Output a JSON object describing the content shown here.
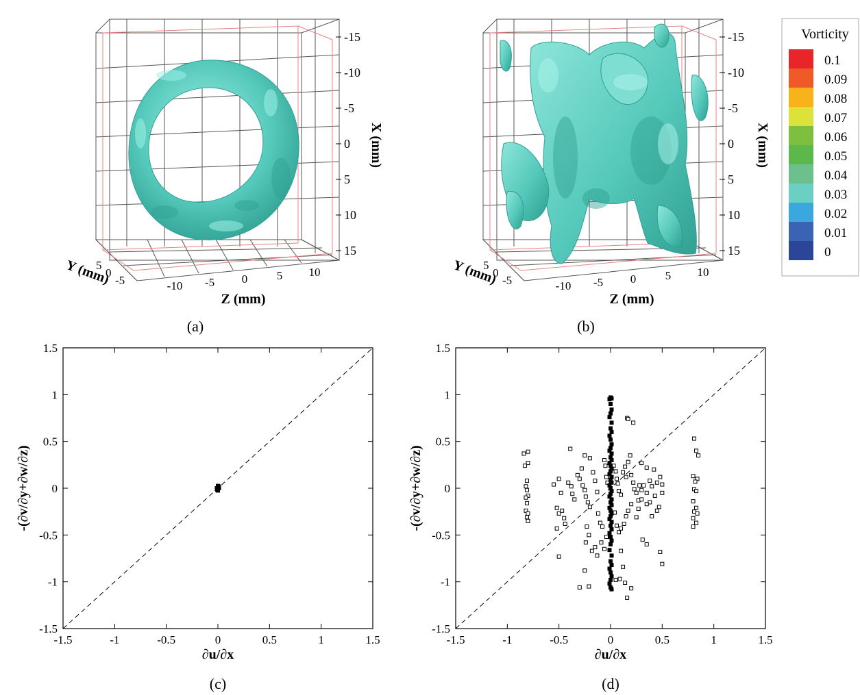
{
  "colors": {
    "isosurface": "#5fcfc1",
    "isosurface_dark": "#2f9f92",
    "isosurface_light": "#8ee6da",
    "box_grid": "#555555",
    "box_red": "#e88080",
    "axis": "#000000",
    "marker": "#000000"
  },
  "panel_a": {
    "label": "(a)",
    "x_axis": {
      "title": "X (mm)",
      "ticks": [
        "-15",
        "-10",
        "-5",
        "0",
        "5",
        "10",
        "15"
      ]
    },
    "y_axis": {
      "title": "Y (mm)",
      "ticks": [
        "5",
        "0",
        "-5"
      ]
    },
    "z_axis": {
      "title": "Z (mm)",
      "ticks": [
        "-10",
        "-5",
        "0",
        "5",
        "10"
      ]
    },
    "shape": "vortex-ring-isosurface"
  },
  "panel_b": {
    "label": "(b)",
    "x_axis": {
      "title": "X (mm)",
      "ticks": [
        "-15",
        "-10",
        "-5",
        "0",
        "5",
        "10",
        "15"
      ]
    },
    "y_axis": {
      "title": "Y (mm)",
      "ticks": [
        "5",
        "0",
        "-5"
      ]
    },
    "z_axis": {
      "title": "Z (mm)",
      "ticks": [
        "-10",
        "-5",
        "0",
        "5",
        "10"
      ]
    },
    "shape": "turbulent-vortex-isosurface"
  },
  "legend": {
    "title": "Vorticity",
    "entries": [
      {
        "label": "0.1",
        "color": "#e8262a"
      },
      {
        "label": "0.09",
        "color": "#f05a28"
      },
      {
        "label": "0.08",
        "color": "#f8b21a"
      },
      {
        "label": "0.07",
        "color": "#dde23a"
      },
      {
        "label": "0.06",
        "color": "#7fbf3f"
      },
      {
        "label": "0.05",
        "color": "#5cb84a"
      },
      {
        "label": "0.04",
        "color": "#6cc08c"
      },
      {
        "label": "0.03",
        "color": "#6ccfc4"
      },
      {
        "label": "0.02",
        "color": "#3aa8df"
      },
      {
        "label": "0.01",
        "color": "#3b63b3"
      },
      {
        "label": "0",
        "color": "#2b4598"
      }
    ]
  },
  "chart_data": [
    {
      "type": "scatter",
      "panel": "(c)",
      "xlabel": "∂u/∂x",
      "ylabel": "-(∂v/∂y+∂w/∂z)",
      "xlim": [
        -1.5,
        1.5
      ],
      "ylim": [
        -1.5,
        1.5
      ],
      "xticks": [
        "-1.5",
        "-1",
        "-0.5",
        "0",
        "0.5",
        "1",
        "1.5"
      ],
      "yticks": [
        "-1.5",
        "-1",
        "-0.5",
        "0",
        "0.5",
        "1",
        "1.5"
      ],
      "reference_line": "y = x (dashed)",
      "marker": "square",
      "series": [
        {
          "points": [
            [
              0,
              0
            ],
            [
              0,
              0.01
            ],
            [
              0,
              -0.01
            ],
            [
              0.01,
              0
            ],
            [
              -0.01,
              0
            ],
            [
              0.005,
              0.02
            ],
            [
              -0.005,
              -0.02
            ],
            [
              0.01,
              0.01
            ],
            [
              -0.01,
              -0.01
            ],
            [
              0,
              0.025
            ],
            [
              0,
              -0.025
            ]
          ]
        }
      ]
    },
    {
      "type": "scatter",
      "panel": "(d)",
      "xlabel": "∂u/∂x",
      "ylabel": "-(∂v/∂y+∂w/∂z)",
      "xlim": [
        -1.5,
        1.5
      ],
      "ylim": [
        -1.5,
        1.5
      ],
      "xticks": [
        "-1.5",
        "-1",
        "-0.5",
        "0",
        "0.5",
        "1",
        "1.5"
      ],
      "yticks": [
        "-1.5",
        "-1",
        "-0.5",
        "0",
        "0.5",
        "1",
        "1.5"
      ],
      "reference_line": "y = x (dashed)",
      "marker": "square",
      "series": [
        {
          "points": [
            [
              -0.84,
              0.37
            ],
            [
              -0.8,
              0.39
            ],
            [
              -0.8,
              0.27
            ],
            [
              -0.83,
              0.24
            ],
            [
              -0.81,
              0.08
            ],
            [
              -0.82,
              0.02
            ],
            [
              -0.81,
              -0.02
            ],
            [
              -0.8,
              -0.08
            ],
            [
              -0.82,
              -0.1
            ],
            [
              -0.81,
              -0.16
            ],
            [
              -0.82,
              -0.24
            ],
            [
              -0.8,
              -0.27
            ],
            [
              -0.81,
              -0.31
            ],
            [
              -0.8,
              -0.35
            ],
            [
              0.81,
              0.53
            ],
            [
              0.83,
              0.4
            ],
            [
              0.85,
              0.35
            ],
            [
              0.8,
              0.13
            ],
            [
              0.84,
              0.1
            ],
            [
              0.82,
              0.07
            ],
            [
              0.81,
              -0.01
            ],
            [
              0.83,
              -0.03
            ],
            [
              0.8,
              -0.14
            ],
            [
              0.83,
              -0.21
            ],
            [
              0.81,
              -0.25
            ],
            [
              0.84,
              -0.27
            ],
            [
              0.8,
              -0.32
            ],
            [
              0.83,
              -0.37
            ],
            [
              0.8,
              -0.41
            ],
            [
              -0.52,
              -0.21
            ],
            [
              -0.5,
              -0.27
            ],
            [
              -0.47,
              -0.24
            ],
            [
              -0.45,
              -0.32
            ],
            [
              -0.44,
              -0.38
            ],
            [
              -0.52,
              -0.43
            ],
            [
              -0.5,
              -0.73
            ],
            [
              -0.39,
              0.42
            ],
            [
              -0.41,
              0.06
            ],
            [
              -0.38,
              0.02
            ],
            [
              -0.37,
              -0.06
            ],
            [
              -0.35,
              -0.12
            ],
            [
              -0.32,
              0.14
            ],
            [
              -0.3,
              0.1
            ],
            [
              -0.28,
              0.21
            ],
            [
              -0.27,
              0.03
            ],
            [
              -0.25,
              -0.02
            ],
            [
              -0.24,
              -0.09
            ],
            [
              -0.22,
              -0.15
            ],
            [
              -0.2,
              -0.2
            ],
            [
              -0.17,
              0.17
            ],
            [
              -0.15,
              0.08
            ],
            [
              -0.13,
              -0.04
            ],
            [
              -0.12,
              -0.27
            ],
            [
              -0.1,
              -0.37
            ],
            [
              -0.08,
              -0.41
            ],
            [
              -0.06,
              0.3
            ],
            [
              -0.05,
              0.24
            ],
            [
              -0.04,
              0.12
            ],
            [
              -0.03,
              0.06
            ],
            [
              -0.23,
              -0.41
            ],
            [
              -0.21,
              -0.5
            ],
            [
              -0.24,
              -0.58
            ],
            [
              -0.18,
              -0.67
            ],
            [
              -0.15,
              -0.63
            ],
            [
              -0.13,
              -0.72
            ],
            [
              -0.25,
              -0.88
            ],
            [
              -0.3,
              -1.06
            ],
            [
              -0.21,
              -1.05
            ],
            [
              0.03,
              0.24
            ],
            [
              0.05,
              0.18
            ],
            [
              0.06,
              0.1
            ],
            [
              0.07,
              0.05
            ],
            [
              0.08,
              -0.03
            ],
            [
              0.1,
              -0.07
            ],
            [
              0.12,
              0.17
            ],
            [
              0.14,
              0.23
            ],
            [
              0.15,
              0.12
            ],
            [
              0.17,
              0.28
            ],
            [
              0.19,
              0.35
            ],
            [
              0.2,
              0.14
            ],
            [
              0.22,
              0.06
            ],
            [
              0.23,
              -0.01
            ],
            [
              0.25,
              -0.05
            ],
            [
              0.27,
              -0.13
            ],
            [
              0.28,
              0.03
            ],
            [
              0.3,
              -0.02
            ],
            [
              0.32,
              0.03
            ],
            [
              0.35,
              -0.05
            ],
            [
              0.38,
              0.08
            ],
            [
              0.4,
              0.02
            ],
            [
              0.43,
              -0.08
            ],
            [
              0.45,
              0.06
            ],
            [
              0.47,
              -0.2
            ],
            [
              0.5,
              0.04
            ],
            [
              0.5,
              -0.05
            ],
            [
              0.48,
              0.12
            ],
            [
              0.45,
              -0.24
            ],
            [
              0.4,
              -0.3
            ],
            [
              0.38,
              -0.15
            ],
            [
              0.35,
              -0.17
            ],
            [
              0.3,
              -0.12
            ],
            [
              0.27,
              -0.22
            ],
            [
              0.25,
              -0.31
            ],
            [
              0.2,
              -0.17
            ],
            [
              0.17,
              -0.24
            ],
            [
              0.15,
              -0.3
            ],
            [
              0.13,
              -0.38
            ],
            [
              0.1,
              -0.43
            ],
            [
              0.08,
              -0.47
            ],
            [
              0.06,
              -0.4
            ],
            [
              0.04,
              -0.26
            ],
            [
              0.31,
              -0.55
            ],
            [
              0.35,
              -0.6
            ],
            [
              0.48,
              -0.68
            ],
            [
              0.5,
              -0.81
            ],
            [
              0.16,
              0.75
            ],
            [
              0.17,
              0.74
            ],
            [
              0.22,
              0.7
            ],
            [
              0.1,
              -0.67
            ],
            [
              0.12,
              -0.84
            ],
            [
              0.09,
              -0.97
            ],
            [
              0.14,
              -1.01
            ],
            [
              0.16,
              -1.17
            ],
            [
              0.2,
              -1.07
            ],
            [
              0.05,
              -0.98
            ],
            [
              -0.06,
              -0.65
            ],
            [
              -0.09,
              -0.58
            ],
            [
              -0.04,
              -0.52
            ],
            [
              -0.5,
              0.1
            ],
            [
              -0.55,
              0.04
            ],
            [
              -0.48,
              -0.05
            ],
            [
              -0.2,
              0.32
            ],
            [
              -0.25,
              0.35
            ],
            [
              0.3,
              0.27
            ],
            [
              0.35,
              0.22
            ],
            [
              0.42,
              0.2
            ]
          ]
        },
        {
          "name_hidden": "dense-column-near-zero",
          "points": [
            [
              0,
              0.97
            ],
            [
              0.01,
              0.96
            ],
            [
              -0.01,
              0.95
            ],
            [
              0,
              0.9
            ],
            [
              0.01,
              0.84
            ],
            [
              0,
              0.8
            ],
            [
              -0.01,
              0.76
            ],
            [
              0.01,
              0.7
            ],
            [
              0,
              0.64
            ],
            [
              0.01,
              0.6
            ],
            [
              -0.01,
              0.56
            ],
            [
              0,
              0.52
            ],
            [
              0.01,
              0.47
            ],
            [
              0,
              0.43
            ],
            [
              -0.01,
              0.4
            ],
            [
              0.01,
              0.37
            ],
            [
              0,
              0.33
            ],
            [
              0.01,
              0.3
            ],
            [
              -0.01,
              0.27
            ],
            [
              0,
              0.24
            ],
            [
              0.01,
              0.21
            ],
            [
              0,
              0.18
            ],
            [
              -0.01,
              0.15
            ],
            [
              0.01,
              0.12
            ],
            [
              0,
              0.09
            ],
            [
              0.01,
              0.06
            ],
            [
              -0.01,
              0.03
            ],
            [
              0,
              0
            ],
            [
              0.01,
              -0.03
            ],
            [
              0,
              -0.06
            ],
            [
              -0.01,
              -0.09
            ],
            [
              0.01,
              -0.12
            ],
            [
              0,
              -0.15
            ],
            [
              0.01,
              -0.18
            ],
            [
              -0.01,
              -0.21
            ],
            [
              0,
              -0.24
            ],
            [
              0.01,
              -0.27
            ],
            [
              0,
              -0.3
            ],
            [
              -0.01,
              -0.33
            ],
            [
              0.01,
              -0.36
            ],
            [
              0,
              -0.4
            ],
            [
              0.01,
              -0.44
            ],
            [
              -0.01,
              -0.48
            ],
            [
              0,
              -0.52
            ],
            [
              0.01,
              -0.56
            ],
            [
              0,
              -0.6
            ],
            [
              -0.01,
              -0.66
            ],
            [
              0.01,
              -0.72
            ],
            [
              0,
              -0.78
            ],
            [
              0.01,
              -0.82
            ],
            [
              -0.01,
              -0.86
            ],
            [
              0,
              -0.9
            ],
            [
              0.01,
              -0.94
            ],
            [
              0,
              -0.98
            ],
            [
              -0.01,
              -1.02
            ],
            [
              0,
              -1.06
            ],
            [
              0.01,
              -1.08
            ]
          ]
        }
      ]
    }
  ]
}
